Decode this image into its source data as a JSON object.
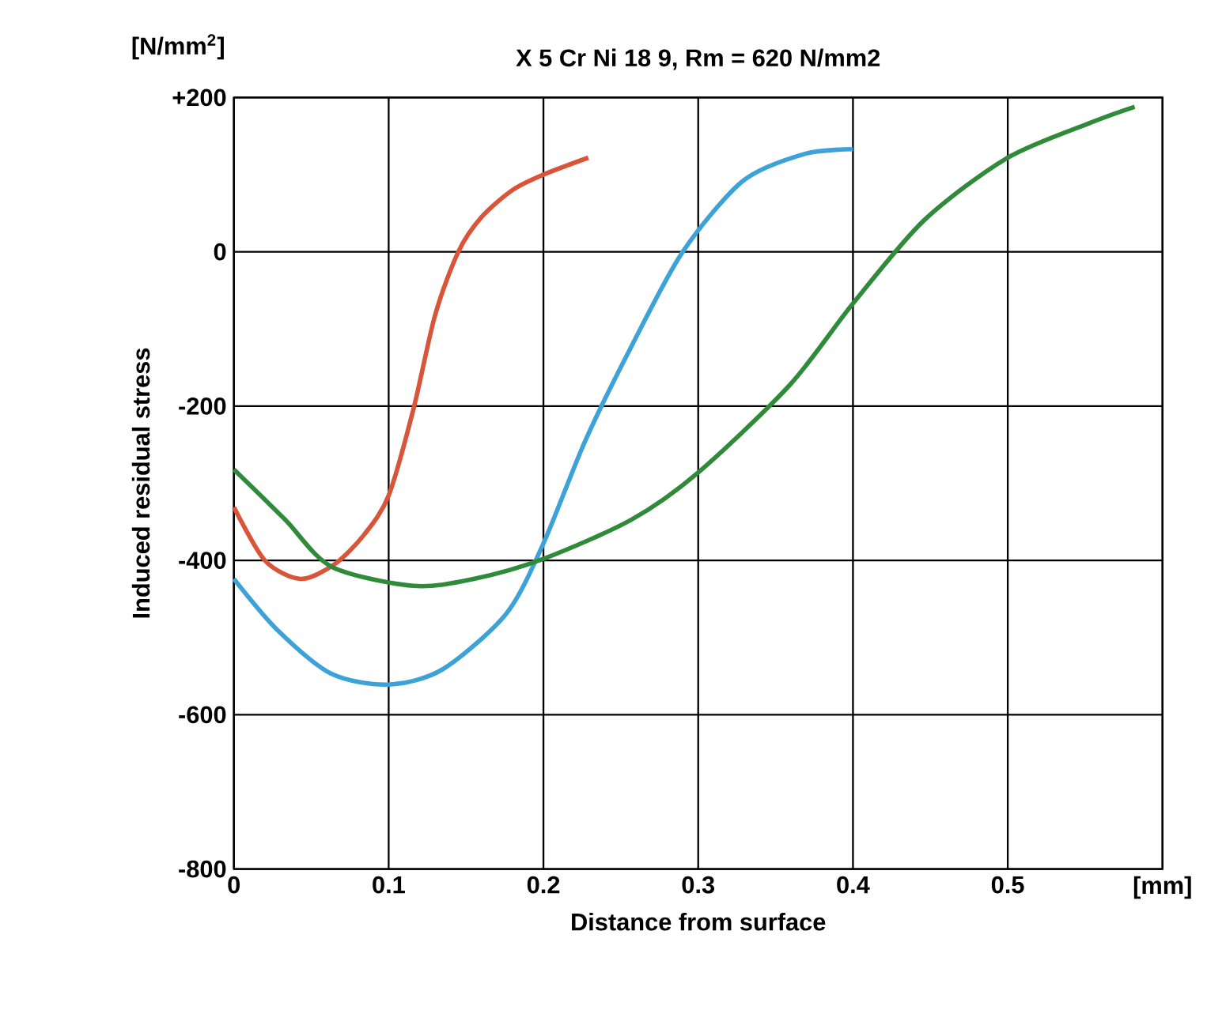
{
  "chart_data": {
    "type": "line",
    "title": "X 5 Cr Ni 18 9, Rm = 620 N/mm2",
    "xlabel": "Distance from surface",
    "ylabel": "Induced residual stress",
    "annotations": [
      "[N/mm$^{2}$]"
    ],
    "xlim": [
      0,
      0.6
    ],
    "ylim": [
      -800,
      200
    ],
    "xticks": [
      0,
      0.1,
      0.2,
      0.3,
      0.4,
      0.5,
      {
        "value": 0.6,
        "label": "[mm]"
      }
    ],
    "yticks": [
      -800,
      -600,
      -400,
      -200,
      0,
      {
        "value": 200,
        "label": "+200"
      }
    ],
    "grid": true,
    "series": [
      {
        "color": "#d9553a",
        "x": [
          0,
          0.02,
          0.043,
          0.065,
          0.084,
          0.1,
          0.116,
          0.13,
          0.145,
          0.16,
          0.18,
          0.2,
          0.229
        ],
        "values": [
          -331,
          -400,
          -424,
          -405,
          -367,
          -316,
          -204,
          -82,
          0,
          45,
          80,
          100,
          122
        ]
      },
      {
        "color": "#3da2d8",
        "x": [
          0,
          0.028,
          0.063,
          0.1,
          0.135,
          0.176,
          0.2,
          0.227,
          0.257,
          0.29,
          0.329,
          0.369,
          0.4
        ],
        "values": [
          -424,
          -490,
          -547,
          -561,
          -541,
          -469,
          -378,
          -245,
          -122,
          0,
          92,
          127,
          133
        ]
      },
      {
        "color": "#2f8a3a",
        "x": [
          0,
          0.033,
          0.063,
          0.116,
          0.155,
          0.2,
          0.257,
          0.3,
          0.359,
          0.4,
          0.446,
          0.5,
          0.553,
          0.582
        ],
        "values": [
          -282,
          -347,
          -408,
          -433,
          -424,
          -398,
          -347,
          -286,
          -173,
          -67,
          41,
          122,
          167,
          188
        ]
      }
    ]
  }
}
